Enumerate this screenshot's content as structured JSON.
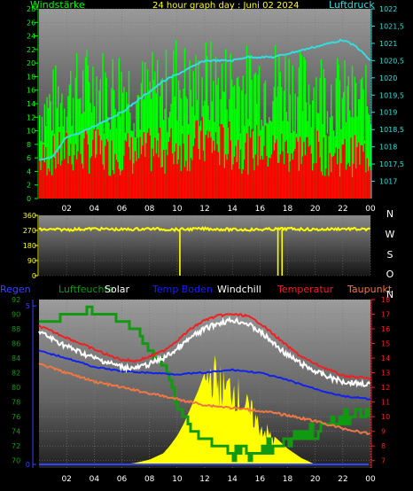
{
  "chart_data": [
    {
      "type": "bar",
      "title": "24 hour graph day : Juni 02 2024",
      "ylabel_left": "Windstärke",
      "ylabel_right": "Luftdruck",
      "x_ticks": [
        "02",
        "04",
        "06",
        "08",
        "10",
        "12",
        "14",
        "16",
        "18",
        "20",
        "22",
        "00"
      ],
      "x_range": [
        0,
        24
      ],
      "ylim_left": [
        0,
        28
      ],
      "y_ticks_left": [
        0,
        2,
        4,
        6,
        8,
        10,
        12,
        14,
        16,
        18,
        20,
        22,
        24,
        26,
        28
      ],
      "ylim_right": [
        1016.5,
        1022
      ],
      "y_ticks_right": [
        "1017",
        "1017,5",
        "1018",
        "1018,5",
        "1019",
        "1019,5",
        "1020",
        "1020,5",
        "1021",
        "1021,5",
        "1022"
      ],
      "series": [
        {
          "name": "Windstärke",
          "kind": "gust_bars",
          "color": "#00ff00",
          "hours": [
            0,
            1,
            2,
            3,
            4,
            5,
            6,
            7,
            8,
            9,
            10,
            11,
            12,
            13,
            14,
            15,
            16,
            17,
            18,
            19,
            20,
            21,
            22,
            23,
            24
          ],
          "values": [
            16,
            18,
            20,
            20,
            22,
            20,
            22,
            19,
            20,
            20,
            23,
            20,
            22,
            21,
            22,
            21,
            22,
            22,
            22,
            20,
            21,
            20,
            19,
            18,
            18
          ]
        },
        {
          "name": "Windstärke",
          "kind": "mean_bars",
          "color": "#ff0000",
          "hours": [
            0,
            1,
            2,
            3,
            4,
            5,
            6,
            7,
            8,
            9,
            10,
            11,
            12,
            13,
            14,
            15,
            16,
            17,
            18,
            19,
            20,
            21,
            22,
            23,
            24
          ],
          "values": [
            8,
            9,
            10,
            10,
            10,
            9,
            10,
            9,
            10,
            10,
            11,
            11,
            12,
            11,
            11,
            10,
            11,
            10,
            10,
            10,
            10,
            9,
            9,
            9,
            9
          ]
        },
        {
          "name": "Luftdruck",
          "kind": "line",
          "color": "#33dddd",
          "hours": [
            0,
            1,
            2,
            3,
            4,
            5,
            6,
            7,
            8,
            9,
            10,
            11,
            12,
            13,
            14,
            15,
            16,
            17,
            18,
            19,
            20,
            21,
            22,
            23,
            24
          ],
          "values": [
            1017.6,
            1017.7,
            1018.3,
            1018.4,
            1018.6,
            1018.8,
            1019.0,
            1019.3,
            1019.6,
            1019.9,
            1020.1,
            1020.3,
            1020.5,
            1020.5,
            1020.5,
            1020.6,
            1020.6,
            1020.6,
            1020.7,
            1020.8,
            1020.9,
            1021.0,
            1021.1,
            1020.9,
            1020.5
          ]
        }
      ]
    },
    {
      "type": "line",
      "title": "",
      "ylabel_right": [
        "N",
        "W",
        "S",
        "O",
        "N"
      ],
      "x_range": [
        0,
        24
      ],
      "ylim": [
        0,
        360
      ],
      "y_ticks": [
        0,
        90,
        180,
        270,
        360
      ],
      "series": [
        {
          "name": "Windrichtung",
          "color": "#ffff00",
          "hours": [
            0,
            2,
            4,
            6,
            8,
            10,
            12,
            14,
            16,
            18,
            20,
            22,
            24
          ],
          "values": [
            275,
            275,
            280,
            275,
            280,
            275,
            280,
            275,
            275,
            280,
            275,
            280,
            275
          ],
          "spikes": [
            {
              "hour": 10.2,
              "value": 0
            },
            {
              "hour": 17.3,
              "value": 0
            },
            {
              "hour": 17.6,
              "value": 0
            }
          ]
        }
      ]
    },
    {
      "type": "line",
      "title": "",
      "legend": [
        "Regen",
        "Luftfeuchte",
        "Solar",
        "Temp Boden",
        "Windchill",
        "Temperatur",
        "Taupunkt"
      ],
      "x_ticks": [
        "02",
        "04",
        "06",
        "08",
        "10",
        "12",
        "14",
        "16",
        "18",
        "20",
        "22",
        "00"
      ],
      "x_range": [
        0,
        24
      ],
      "y_ticks_far_left": [
        70,
        72,
        74,
        76,
        78,
        80,
        82,
        84,
        86,
        88,
        90,
        92
      ],
      "ylim_far_left": [
        69,
        92
      ],
      "y_ticks_rain": [
        0,
        5
      ],
      "ylim_rain": [
        0,
        5.2
      ],
      "y_ticks_right": [
        7,
        8,
        9,
        10,
        11,
        12,
        13,
        14,
        15,
        16,
        17,
        18
      ],
      "ylim_right": [
        6.5,
        18
      ],
      "series": [
        {
          "name": "Luftfeuchte",
          "color": "#119911",
          "axis": "far_left",
          "hours": [
            0,
            1,
            2,
            3,
            3.6,
            4,
            5,
            6,
            7,
            7.5,
            8,
            8.5,
            9,
            9.5,
            10,
            10.5,
            11,
            12,
            13,
            14,
            15,
            16,
            17,
            18,
            19,
            20,
            21,
            22,
            23,
            24
          ],
          "values": [
            89,
            89,
            90,
            90,
            91,
            90,
            90,
            89,
            88,
            86,
            85,
            84,
            83,
            81,
            77,
            76,
            74,
            73,
            72,
            71,
            71,
            71,
            72,
            73,
            74,
            74,
            75,
            76,
            76,
            76
          ]
        },
        {
          "name": "Temperatur",
          "color": "#ee2222",
          "axis": "right",
          "hours": [
            0,
            1,
            2,
            3,
            4,
            5,
            6,
            7,
            8,
            9,
            10,
            11,
            12,
            13,
            14,
            15,
            16,
            17,
            18,
            19,
            20,
            21,
            22,
            23,
            24
          ],
          "values": [
            16.2,
            15.8,
            15.4,
            15.0,
            14.6,
            14.2,
            13.9,
            13.8,
            14.1,
            14.5,
            15.2,
            16.0,
            16.6,
            16.9,
            17.0,
            16.9,
            16.4,
            15.6,
            14.8,
            14.1,
            13.6,
            13.2,
            12.8,
            12.7,
            12.6
          ]
        },
        {
          "name": "Windchill",
          "color": "#ffffff",
          "axis": "right",
          "hours": [
            0,
            1,
            2,
            3,
            4,
            5,
            6,
            7,
            8,
            9,
            10,
            11,
            12,
            13,
            14,
            15,
            16,
            17,
            18,
            19,
            20,
            21,
            22,
            23,
            24
          ],
          "values": [
            15.8,
            15.3,
            14.8,
            14.4,
            14.0,
            13.7,
            13.4,
            13.3,
            13.6,
            14.0,
            14.6,
            15.4,
            16.0,
            16.4,
            16.6,
            16.4,
            15.8,
            15.0,
            14.2,
            13.6,
            13.1,
            12.7,
            12.4,
            12.3,
            12.2
          ]
        },
        {
          "name": "Temp Boden",
          "color": "#1122ee",
          "axis": "right",
          "hours": [
            0,
            2,
            4,
            6,
            8,
            10,
            12,
            14,
            16,
            18,
            20,
            22,
            24
          ],
          "values": [
            14.5,
            14.0,
            13.4,
            13.1,
            13.0,
            12.9,
            13.0,
            13.2,
            13.0,
            12.5,
            11.9,
            11.4,
            11.2
          ]
        },
        {
          "name": "Taupunkt",
          "color": "#ee7744",
          "axis": "right",
          "hours": [
            0,
            2,
            4,
            6,
            8,
            10,
            12,
            14,
            16,
            18,
            20,
            22,
            24
          ],
          "values": [
            13.6,
            13.0,
            12.4,
            12.0,
            11.6,
            11.2,
            10.8,
            10.6,
            10.4,
            10.1,
            9.7,
            9.2,
            8.8
          ]
        },
        {
          "name": "Solar",
          "color": "#ffff00",
          "axis": "rain",
          "hours": [
            6.2,
            7.0,
            8.0,
            9.0,
            9.5,
            10.0,
            10.5,
            11.0,
            11.5,
            12.0,
            12.5,
            13.0,
            13.5,
            14.0,
            14.5,
            15.0,
            15.5,
            16.0,
            16.5,
            17.0,
            17.5,
            18.0,
            18.5,
            19.0,
            19.5,
            20.0
          ],
          "values": [
            0.0,
            0.05,
            0.15,
            0.35,
            0.6,
            0.9,
            1.3,
            1.8,
            2.3,
            2.9,
            3.4,
            3.0,
            2.7,
            2.9,
            2.5,
            2.1,
            1.8,
            1.4,
            1.2,
            0.9,
            0.7,
            0.5,
            0.35,
            0.2,
            0.1,
            0.0
          ]
        },
        {
          "name": "Regen",
          "color": "#3344ff",
          "axis": "rain",
          "hours": [
            0,
            24
          ],
          "values": [
            0,
            0
          ]
        }
      ]
    }
  ],
  "colors": {
    "windstaerke": "#00ff00",
    "luftdruck": "#33dddd",
    "title": "#ffff00",
    "regen": "#3344ff",
    "luftfeuchte": "#119911",
    "solar": "#ffff00",
    "temp_boden": "#1122ee",
    "windchill": "#ffffff",
    "temperatur": "#ee2222",
    "taupunkt": "#ee7744"
  }
}
